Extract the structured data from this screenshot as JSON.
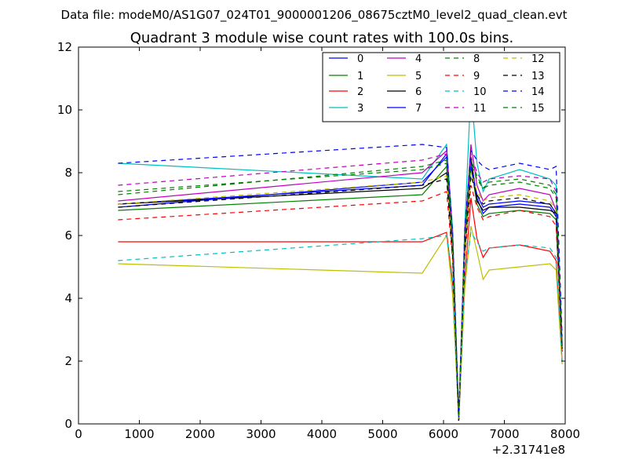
{
  "figure": {
    "suptitle": "Data file: modeM0/AS1G07_024T01_9000001206_08675cztM0_level2_quad_clean.evt"
  },
  "chart_data": {
    "type": "line",
    "title": "Quadrant 3 module wise count rates with 100.0s bins.",
    "xlabel": "",
    "ylabel": "",
    "x_offset_label": "+2.31741e8",
    "xlim": [
      0,
      8000
    ],
    "ylim": [
      0,
      12
    ],
    "xticks": [
      "0",
      "1000",
      "2000",
      "3000",
      "4000",
      "5000",
      "6000",
      "7000",
      "8000"
    ],
    "yticks": [
      "0",
      "2",
      "4",
      "6",
      "8",
      "10",
      "12"
    ],
    "grid": false,
    "legend": {
      "placement": "top-right",
      "columns": 4
    },
    "x": [
      650,
      5650,
      6050,
      6150,
      6250,
      6350,
      6450,
      6550,
      6650,
      6750,
      7250,
      7750,
      7850,
      7950
    ],
    "series": [
      {
        "name": "0",
        "color": "#0000ff",
        "dash": "solid",
        "values": [
          7.0,
          7.6,
          8.6,
          5.5,
          0.1,
          5.5,
          8.4,
          7.2,
          6.7,
          6.9,
          7.0,
          6.9,
          6.6,
          2.4
        ]
      },
      {
        "name": "1",
        "color": "#008000",
        "dash": "solid",
        "values": [
          6.8,
          7.3,
          8.2,
          5.3,
          0.2,
          5.4,
          8.2,
          7.0,
          6.6,
          6.7,
          6.8,
          6.7,
          6.5,
          2.3
        ]
      },
      {
        "name": "2",
        "color": "#ff0000",
        "dash": "solid",
        "values": [
          5.8,
          5.8,
          6.1,
          4.5,
          0.1,
          4.6,
          7.2,
          5.9,
          5.3,
          5.6,
          5.7,
          5.5,
          5.2,
          2.0
        ]
      },
      {
        "name": "3",
        "color": "#00bfbf",
        "dash": "solid",
        "values": [
          8.3,
          7.8,
          8.9,
          6.2,
          0.2,
          6.3,
          10.7,
          8.3,
          7.4,
          7.8,
          8.1,
          7.8,
          7.6,
          2.6
        ]
      },
      {
        "name": "4",
        "color": "#bf00bf",
        "dash": "solid",
        "values": [
          7.1,
          8.0,
          8.7,
          5.9,
          0.2,
          6.0,
          8.9,
          7.6,
          7.1,
          7.3,
          7.5,
          7.3,
          6.8,
          2.5
        ]
      },
      {
        "name": "5",
        "color": "#bfbf00",
        "dash": "solid",
        "values": [
          5.1,
          4.8,
          6.0,
          4.1,
          0.1,
          4.3,
          6.3,
          5.5,
          4.6,
          4.9,
          5.0,
          5.1,
          4.9,
          1.9
        ]
      },
      {
        "name": "6",
        "color": "#000000",
        "dash": "solid",
        "values": [
          7.0,
          7.5,
          8.0,
          5.4,
          0.1,
          5.5,
          8.5,
          7.1,
          6.8,
          6.9,
          6.9,
          6.8,
          6.7,
          2.4
        ]
      },
      {
        "name": "7",
        "color": "#0000ff",
        "dash": "solid",
        "values": [
          6.9,
          7.7,
          8.5,
          5.6,
          0.1,
          5.7,
          8.2,
          7.3,
          6.9,
          7.0,
          7.1,
          7.0,
          6.7,
          2.5
        ]
      },
      {
        "name": "8",
        "color": "#008000",
        "dash": "dashed",
        "values": [
          7.3,
          8.2,
          8.4,
          5.8,
          0.2,
          5.9,
          8.3,
          7.8,
          7.5,
          7.6,
          7.7,
          7.5,
          7.2,
          2.5
        ]
      },
      {
        "name": "9",
        "color": "#ff0000",
        "dash": "dashed",
        "values": [
          6.5,
          7.1,
          7.4,
          5.2,
          0.1,
          5.3,
          7.6,
          6.9,
          6.5,
          6.6,
          6.8,
          6.6,
          6.3,
          2.3
        ]
      },
      {
        "name": "10",
        "color": "#00bfbf",
        "dash": "dashed",
        "values": [
          5.2,
          5.9,
          6.0,
          4.6,
          0.1,
          4.7,
          6.1,
          5.8,
          5.5,
          5.6,
          5.7,
          5.6,
          5.3,
          2.0
        ]
      },
      {
        "name": "11",
        "color": "#bf00bf",
        "dash": "dashed",
        "values": [
          7.6,
          8.4,
          8.6,
          6.0,
          0.2,
          6.1,
          8.6,
          8.0,
          7.7,
          7.8,
          7.9,
          7.8,
          7.4,
          2.6
        ]
      },
      {
        "name": "12",
        "color": "#bfbf00",
        "dash": "dashed",
        "values": [
          7.0,
          7.7,
          7.9,
          5.5,
          0.1,
          5.6,
          8.0,
          7.4,
          7.1,
          7.2,
          7.3,
          7.1,
          6.8,
          2.4
        ]
      },
      {
        "name": "13",
        "color": "#000000",
        "dash": "dashed",
        "values": [
          6.9,
          7.6,
          7.8,
          5.4,
          0.1,
          5.5,
          7.9,
          7.3,
          7.0,
          7.1,
          7.2,
          7.0,
          6.7,
          2.4
        ]
      },
      {
        "name": "14",
        "color": "#0000ff",
        "dash": "dashed",
        "values": [
          8.3,
          8.9,
          8.8,
          6.1,
          0.2,
          6.2,
          8.7,
          8.4,
          8.2,
          8.1,
          8.3,
          8.1,
          8.2,
          2.8
        ]
      },
      {
        "name": "15",
        "color": "#008000",
        "dash": "dashed",
        "values": [
          7.4,
          8.1,
          8.3,
          5.8,
          0.2,
          5.9,
          8.4,
          7.9,
          7.5,
          7.7,
          7.8,
          7.6,
          7.3,
          2.5
        ]
      }
    ]
  }
}
